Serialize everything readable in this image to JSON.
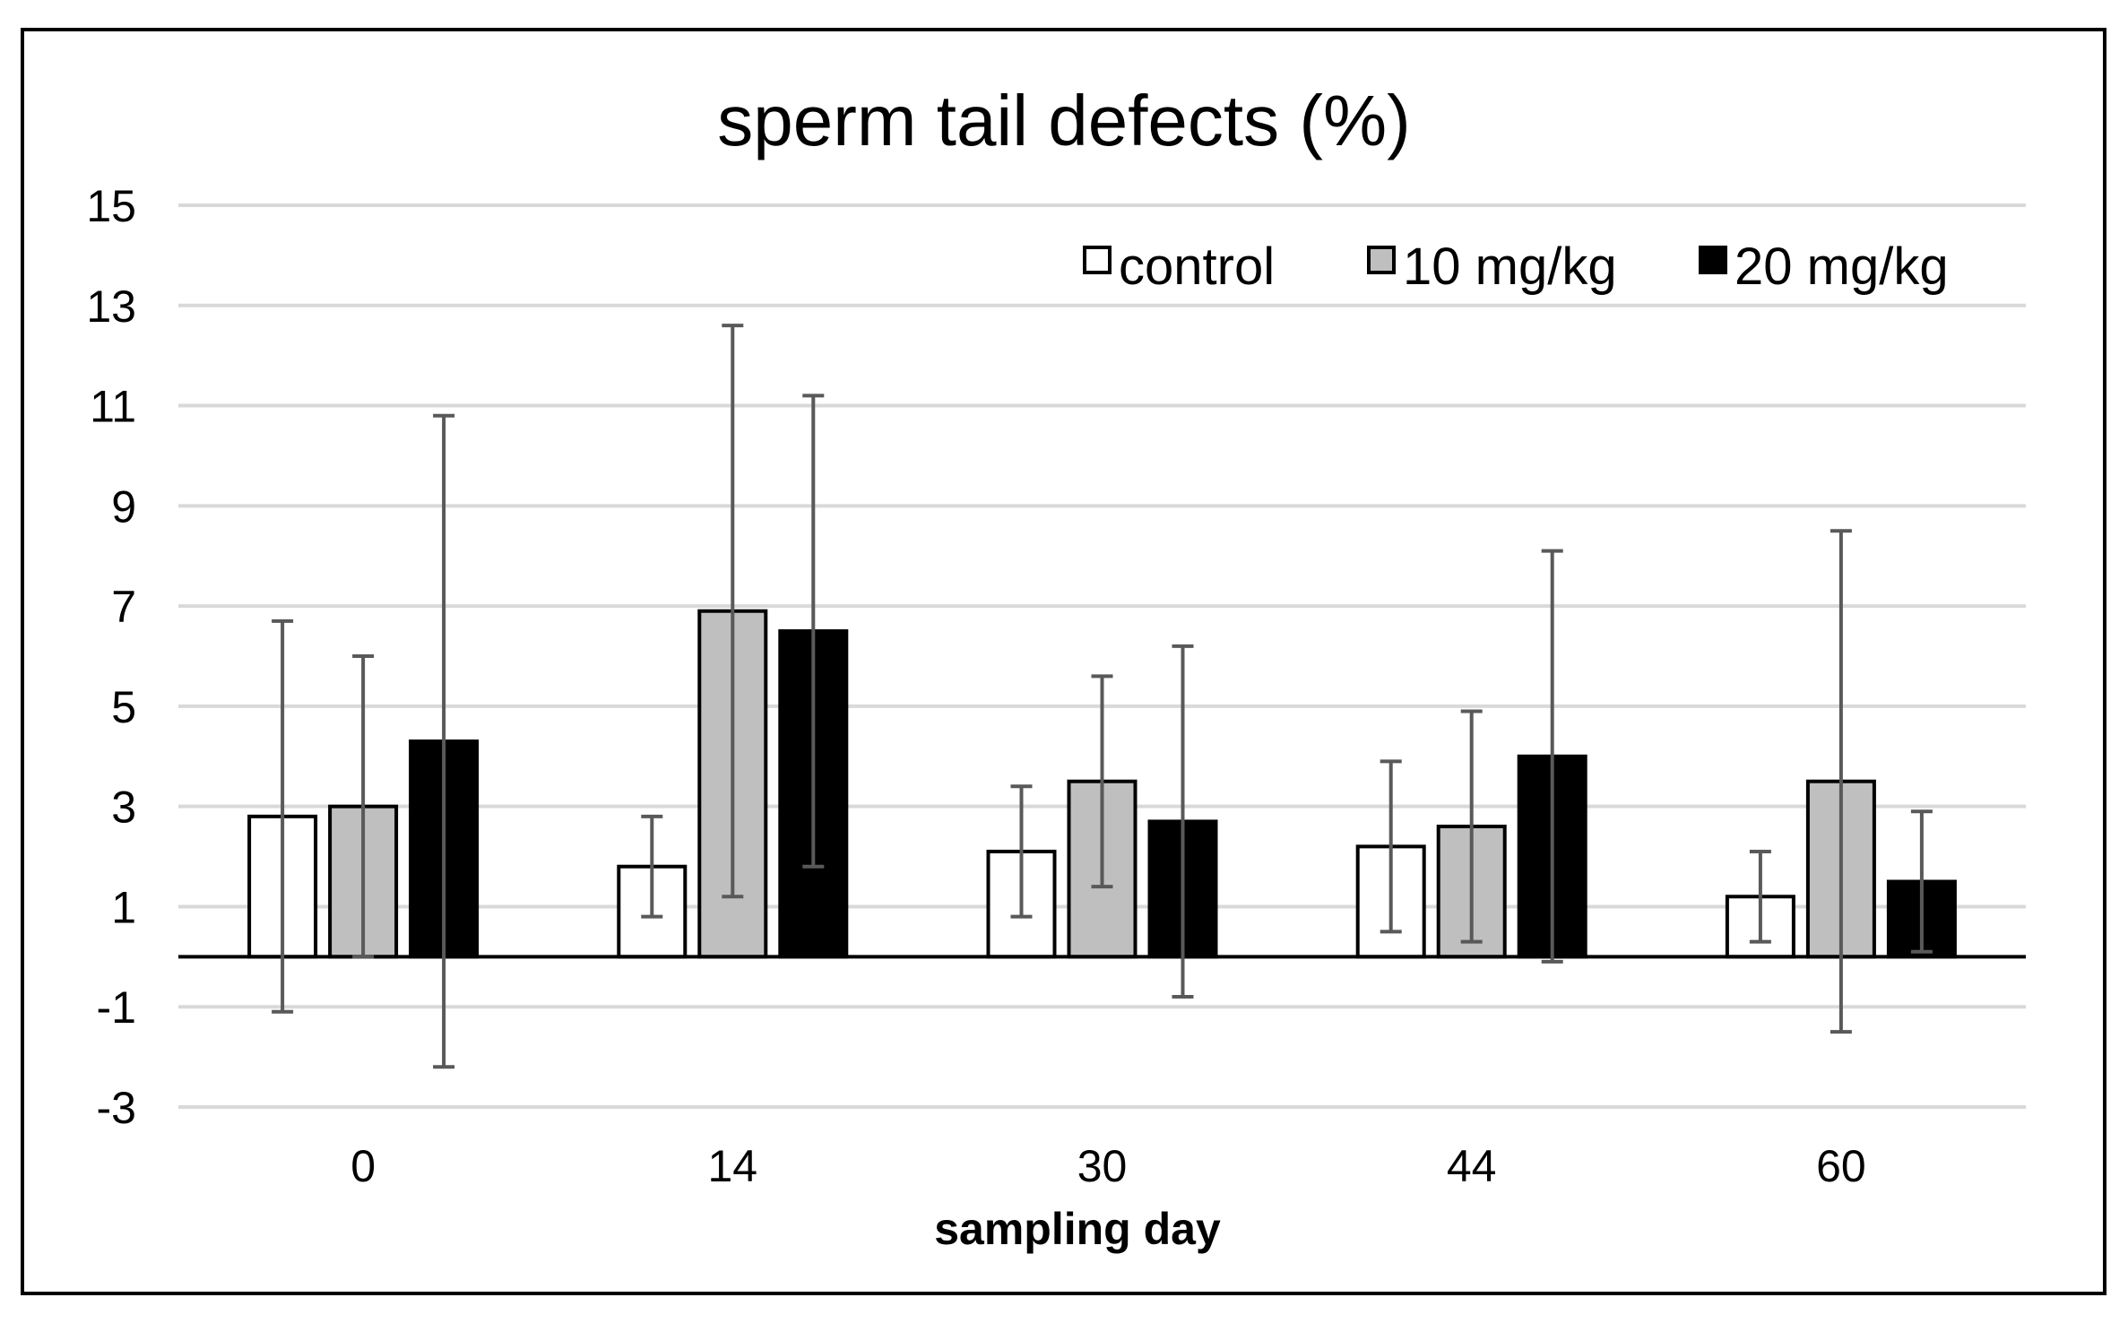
{
  "chart_data": {
    "type": "bar",
    "title": "sperm tail defects (%)",
    "xlabel": "sampling day",
    "ylabel": "",
    "categories": [
      "0",
      "14",
      "30",
      "44",
      "60"
    ],
    "ylim": [
      -3,
      15
    ],
    "yticks": [
      15,
      13,
      11,
      9,
      7,
      5,
      3,
      1,
      -1,
      -3
    ],
    "grid": true,
    "legend_position": "top-right",
    "series": [
      {
        "name": "control",
        "color": "#ffffff",
        "values": [
          2.8,
          1.8,
          2.1,
          2.2,
          1.2
        ],
        "errors": [
          3.9,
          1.0,
          1.3,
          1.7,
          0.9
        ]
      },
      {
        "name": "10 mg/kg",
        "color": "#bfbfbf",
        "values": [
          3.0,
          6.9,
          3.5,
          2.6,
          3.5
        ],
        "errors": [
          3.0,
          5.7,
          2.1,
          2.3,
          5.0
        ]
      },
      {
        "name": "20 mg/kg",
        "color": "#000000",
        "values": [
          4.3,
          6.5,
          2.7,
          4.0,
          1.5
        ],
        "errors": [
          6.5,
          4.7,
          3.5,
          4.1,
          1.4
        ]
      }
    ]
  }
}
